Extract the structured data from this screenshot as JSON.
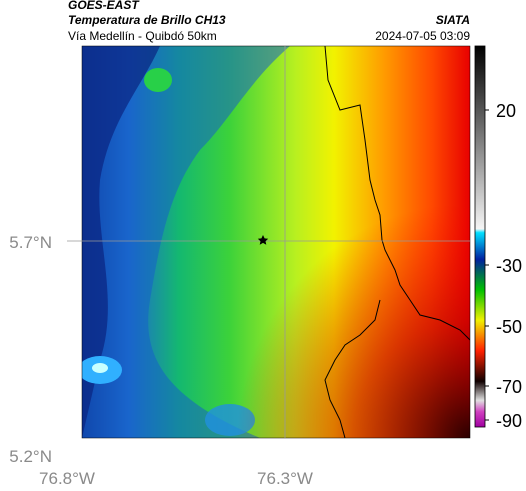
{
  "header": {
    "source": "GOES-EAST",
    "title": "Temperatura de Brillo CH13",
    "subtitle": "Vía Medellín - Quibdó 50km",
    "brand": "SIATA",
    "datetime": "2024-07-05 03:09"
  },
  "map": {
    "lat_labels": [
      "5.7°N",
      "5.2°N"
    ],
    "lon_labels": [
      "76.8°W",
      "76.3°W"
    ]
  },
  "colorbar": {
    "ticks": [
      20,
      -30,
      -50,
      -70,
      -90
    ]
  }
}
